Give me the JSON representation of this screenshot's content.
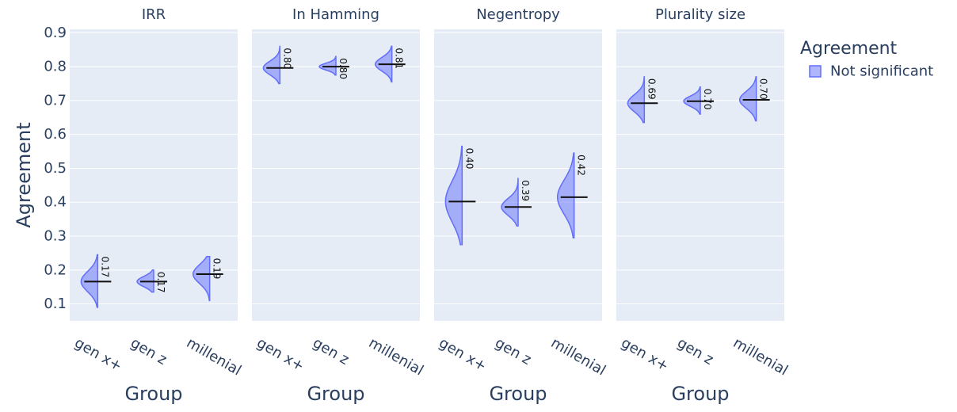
{
  "chart_data": {
    "type": "violin",
    "ylabel": "Agreement",
    "xlabel": "Group",
    "ylim": [
      0.05,
      0.91
    ],
    "yticks": [
      "0.1",
      "0.2",
      "0.3",
      "0.4",
      "0.5",
      "0.6",
      "0.7",
      "0.8",
      "0.9"
    ],
    "categories": [
      "gen x+",
      "gen z",
      "millenial"
    ],
    "legend": {
      "title": "Agreement",
      "items": [
        {
          "name": "Not significant",
          "color": "#636efa"
        }
      ],
      "placement": "top-right"
    },
    "facets": [
      {
        "title": "IRR",
        "violins": [
          {
            "category": "gen x+",
            "median": 0.166,
            "label": "0.17",
            "min": 0.09,
            "max": 0.245,
            "spread": 0.03
          },
          {
            "category": "gen z",
            "median": 0.166,
            "label": "0.17",
            "min": 0.135,
            "max": 0.2,
            "spread": 0.015
          },
          {
            "category": "millenial",
            "median": 0.188,
            "label": "0.19",
            "min": 0.11,
            "max": 0.24,
            "spread": 0.028
          }
        ]
      },
      {
        "title": "In Hamming",
        "violins": [
          {
            "category": "gen x+",
            "median": 0.796,
            "label": "0.80",
            "min": 0.75,
            "max": 0.86,
            "spread": 0.02
          },
          {
            "category": "gen z",
            "median": 0.8,
            "label": "0.80",
            "min": 0.775,
            "max": 0.83,
            "spread": 0.01
          },
          {
            "category": "millenial",
            "median": 0.807,
            "label": "0.81",
            "min": 0.755,
            "max": 0.86,
            "spread": 0.02
          }
        ]
      },
      {
        "title": "Negentropy",
        "violins": [
          {
            "category": "gen x+",
            "median": 0.402,
            "label": "0.40",
            "min": 0.275,
            "max": 0.565,
            "spread": 0.06
          },
          {
            "category": "gen z",
            "median": 0.386,
            "label": "0.39",
            "min": 0.33,
            "max": 0.47,
            "spread": 0.025
          },
          {
            "category": "millenial",
            "median": 0.415,
            "label": "0.42",
            "min": 0.295,
            "max": 0.545,
            "spread": 0.05
          }
        ]
      },
      {
        "title": "Plurality size",
        "violins": [
          {
            "category": "gen x+",
            "median": 0.692,
            "label": "0.69",
            "min": 0.635,
            "max": 0.77,
            "spread": 0.025
          },
          {
            "category": "gen z",
            "median": 0.698,
            "label": "0.70",
            "min": 0.66,
            "max": 0.74,
            "spread": 0.015
          },
          {
            "category": "millenial",
            "median": 0.702,
            "label": "0.70",
            "min": 0.64,
            "max": 0.77,
            "spread": 0.025
          }
        ]
      }
    ]
  }
}
